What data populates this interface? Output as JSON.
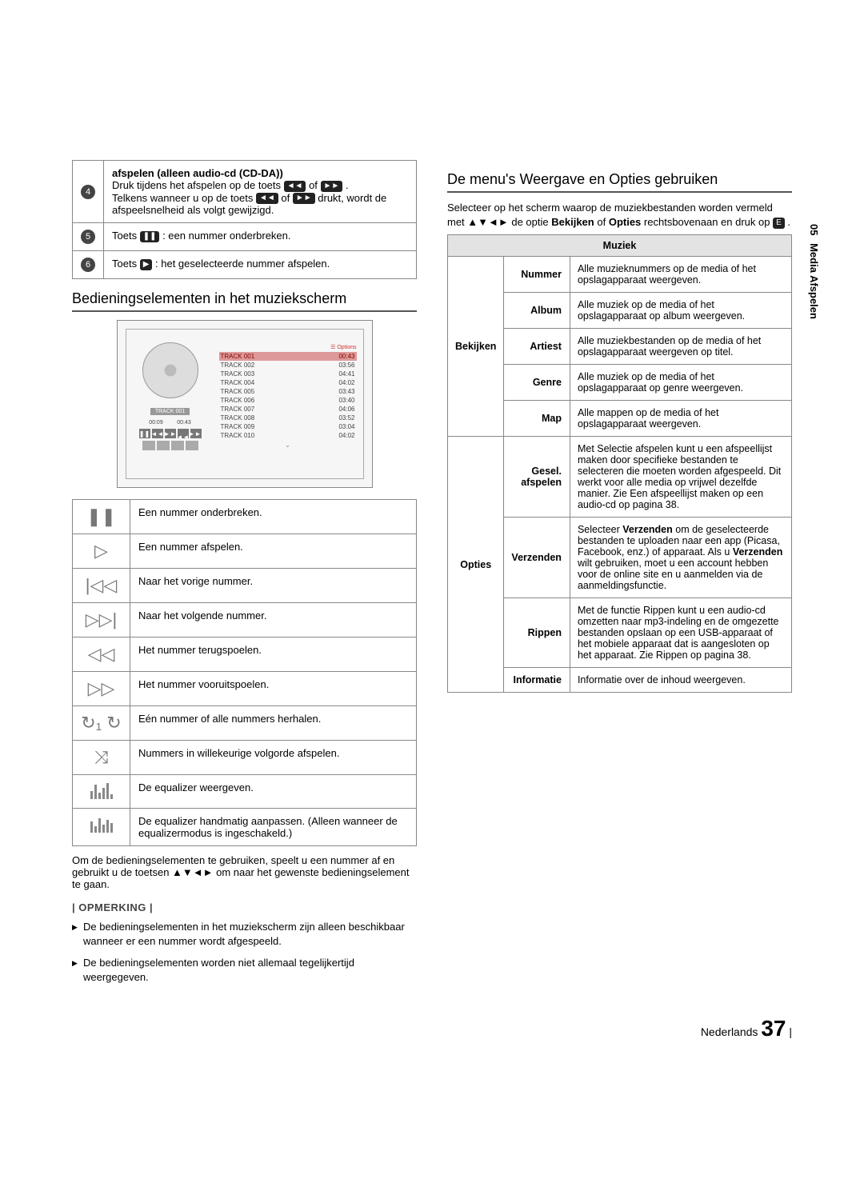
{
  "sidebar": {
    "chapter": "05",
    "title": "Media Afspelen"
  },
  "footer": {
    "lang": "Nederlands",
    "page": "37"
  },
  "numbered": [
    {
      "n": "4",
      "title": "afspelen (alleen audio-cd (CD-DA))",
      "body_pre": "Druk tijdens het afspelen op de toets ",
      "icon1": "◄◄",
      "or1": " of ",
      "icon2": "►►",
      "post1": ".",
      "body2_pre": "Telkens wanneer u op de toets ",
      "icon3": "◄◄",
      "or2": " of ",
      "icon4": "►►",
      "post2": " drukt, wordt de afspeelsnelheid als volgt gewijzigd."
    },
    {
      "n": "5",
      "pre": "Toets ",
      "icon": "❚❚",
      "post": " : een nummer onderbreken."
    },
    {
      "n": "6",
      "pre": "Toets ",
      "icon": "▶",
      "post": " : het geselecteerde nummer afspelen."
    }
  ],
  "h_left": "Bedieningselementen in het muziekscherm",
  "player": {
    "opt": "☰ Options",
    "art_label": "TRACK 001",
    "time_l": "00:09",
    "time_r": "00:43",
    "tracks": [
      {
        "name": "TRACK 001",
        "t": "00:43",
        "hl": true
      },
      {
        "name": "TRACK 002",
        "t": "03:56"
      },
      {
        "name": "TRACK 003",
        "t": "04:41"
      },
      {
        "name": "TRACK 004",
        "t": "04:02"
      },
      {
        "name": "TRACK 005",
        "t": "03:43"
      },
      {
        "name": "TRACK 006",
        "t": "03:40"
      },
      {
        "name": "TRACK 007",
        "t": "04:06"
      },
      {
        "name": "TRACK 008",
        "t": "03:52"
      },
      {
        "name": "TRACK 009",
        "t": "03:04"
      },
      {
        "name": "TRACK 010",
        "t": "04:02"
      }
    ]
  },
  "controls": [
    {
      "glyph": "❚❚",
      "desc": "Een nummer onderbreken."
    },
    {
      "glyph": "▷",
      "desc": "Een nummer afspelen."
    },
    {
      "glyph": "|◁◁",
      "desc": "Naar het vorige nummer."
    },
    {
      "glyph": "▷▷|",
      "desc": "Naar het volgende nummer."
    },
    {
      "glyph": "◁◁",
      "desc": "Het nummer terugspoelen."
    },
    {
      "glyph": "▷▷",
      "desc": "Het nummer vooruitspoelen."
    },
    {
      "glyph": "↻₁ ↻",
      "desc": "Eén nummer of alle nummers herhalen."
    },
    {
      "glyph": "⤨",
      "desc": "Nummers in willekeurige volgorde afspelen."
    },
    {
      "glyph": "eq1",
      "desc": "De equalizer weergeven."
    },
    {
      "glyph": "eq2",
      "desc": "De equalizer handmatig aanpassen. (Alleen wanneer de equalizermodus is ingeschakeld.)"
    }
  ],
  "caption": "Om de bedieningselementen te gebruiken, speelt u een nummer af en gebruikt u de toetsen ▲▼◄► om naar het gewenste bedieningselement te gaan.",
  "opm_label": "| OPMERKING |",
  "notes": [
    "De bedieningselementen in het muziekscherm zijn alleen beschikbaar wanneer er een nummer wordt afgespeeld.",
    "De bedieningselementen worden niet allemaal tegelijkertijd weergegeven."
  ],
  "h_right": "De menu's Weergave en Opties gebruiken",
  "intro_r_1": "Selecteer op het scherm waarop de muziekbestanden worden vermeld met ▲▼◄► de optie ",
  "intro_r_b1": "Bekijken",
  "intro_r_mid": " of ",
  "intro_r_b2": "Opties",
  "intro_r_2": " rechtsbovenaan en druk op ",
  "intro_r_icon": "E",
  "intro_r_3": ".",
  "menu_header": "Muziek",
  "menu": {
    "bekijken": {
      "label": "Bekijken",
      "items": [
        {
          "k": "Nummer",
          "v": "Alle muzieknummers op de media of het opslagapparaat weergeven."
        },
        {
          "k": "Album",
          "v": "Alle muziek op de media of het opslagapparaat op album weergeven."
        },
        {
          "k": "Artiest",
          "v": "Alle muziekbestanden op de media of het opslagapparaat weergeven op titel."
        },
        {
          "k": "Genre",
          "v": "Alle muziek op de media of het opslagapparaat op genre weergeven."
        },
        {
          "k": "Map",
          "v": "Alle mappen op de media of het opslagapparaat weergeven."
        }
      ]
    },
    "opties": {
      "label": "Opties",
      "items": [
        {
          "k": "Gesel. afspelen",
          "v": "Met Selectie afspelen kunt u een afspeellijst maken door specifieke bestanden te selecteren die moeten worden afgespeeld. Dit werkt voor alle media op vrijwel dezelfde manier. Zie Een afspeellijst maken op een audio-cd op pagina 38."
        },
        {
          "k": "Verzenden",
          "v_pre": "Selecteer ",
          "v_b1": "Verzenden",
          "v_mid": " om de geselecteerde bestanden te uploaden naar een app (Picasa, Facebook, enz.) of apparaat. Als u ",
          "v_b2": "Verzenden",
          "v_post": " wilt gebruiken, moet u een account hebben voor de online site en u aanmelden via de aanmeldingsfunctie."
        },
        {
          "k": "Rippen",
          "v": "Met de functie Rippen kunt u een audio-cd omzetten naar mp3-indeling en de omgezette bestanden opslaan op een USB-apparaat of het mobiele apparaat dat is aangesloten op het apparaat. Zie Rippen op pagina 38."
        },
        {
          "k": "Informatie",
          "v": "Informatie over de inhoud weergeven."
        }
      ]
    }
  }
}
